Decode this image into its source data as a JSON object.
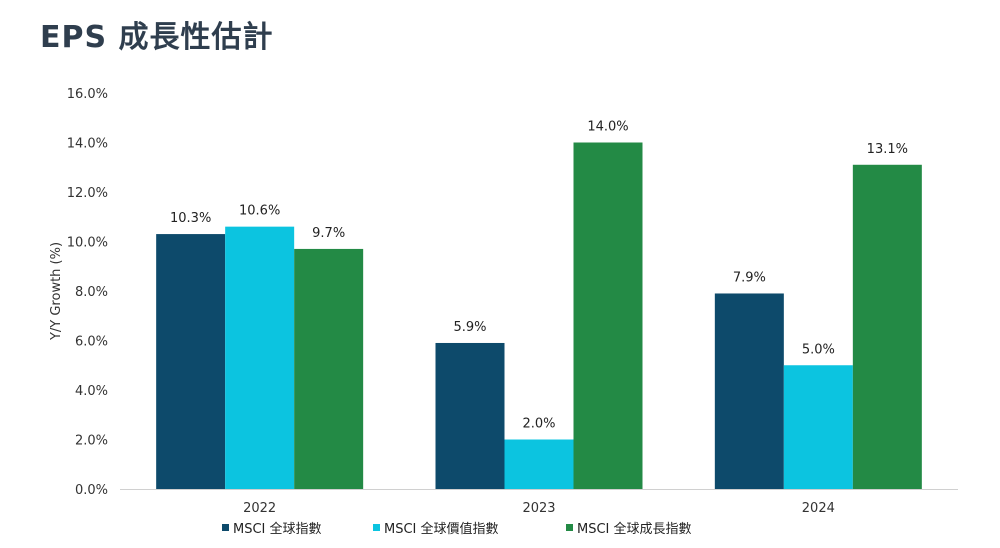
{
  "title": "EPS 成長性估計",
  "chart_data": {
    "type": "bar",
    "ylabel": "Y/Y Growth (%)",
    "xlabel": "",
    "ylim": [
      0,
      16
    ],
    "ytick_step": 2,
    "ytick_labels": [
      "0.0%",
      "2.0%",
      "4.0%",
      "6.0%",
      "8.0%",
      "10.0%",
      "12.0%",
      "14.0%",
      "16.0%"
    ],
    "categories": [
      "2022",
      "2023",
      "2024"
    ],
    "series": [
      {
        "name": "MSCI 全球指數",
        "color": "#0d4a6b",
        "values": [
          10.3,
          5.9,
          7.9
        ],
        "labels": [
          "10.3%",
          "5.9%",
          "7.9%"
        ]
      },
      {
        "name": "MSCI 全球價值指數",
        "color": "#0cc4e0",
        "values": [
          10.6,
          2.0,
          5.0
        ],
        "labels": [
          "10.6%",
          "2.0%",
          "5.0%"
        ]
      },
      {
        "name": "MSCI 全球成長指數",
        "color": "#238a45",
        "values": [
          9.7,
          14.0,
          13.1
        ],
        "labels": [
          "9.7%",
          "14.0%",
          "13.1%"
        ]
      }
    ],
    "grid": false,
    "legend": "bottom"
  }
}
